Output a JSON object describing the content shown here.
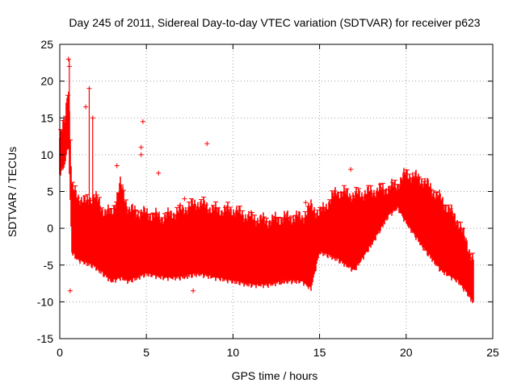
{
  "chart_data": {
    "type": "scatter",
    "title": "Day 245 of 2011, Sidereal Day-to-day VTEC variation (SDTVAR) for receiver p623",
    "xlabel": "GPS time / hours",
    "ylabel": "SDTVAR / TECUs",
    "xlim": [
      0,
      25
    ],
    "ylim": [
      -15,
      25
    ],
    "x_ticks": [
      0,
      5,
      10,
      15,
      20,
      25
    ],
    "y_ticks": [
      -15,
      -10,
      -5,
      0,
      5,
      10,
      15,
      20,
      25
    ],
    "grid": true,
    "marker": "+",
    "color": "#ff0000",
    "series": [
      {
        "name": "SDTVAR",
        "band_hours": [
          0.0,
          0.3,
          0.5,
          0.7,
          1.0,
          1.5,
          2.0,
          2.5,
          3.0,
          3.5,
          4.0,
          5.0,
          6.0,
          7.0,
          8.0,
          9.0,
          10.0,
          11.0,
          12.0,
          13.0,
          14.0,
          14.5,
          15.0,
          16.0,
          17.0,
          18.0,
          19.0,
          19.5,
          20.0,
          21.0,
          22.0,
          23.0,
          23.5,
          23.9
        ],
        "upper": [
          12.0,
          15.0,
          20.0,
          5.5,
          4.5,
          3.5,
          4.5,
          2.5,
          2.0,
          6.0,
          2.5,
          2.0,
          1.5,
          2.5,
          3.5,
          2.5,
          2.5,
          1.5,
          1.0,
          1.5,
          1.5,
          3.0,
          2.0,
          5.0,
          4.5,
          5.0,
          5.5,
          6.0,
          7.5,
          6.5,
          4.0,
          1.0,
          -2.0,
          -4.5
        ],
        "lower": [
          7.5,
          9.0,
          12.0,
          -3.0,
          -4.0,
          -4.5,
          -5.0,
          -6.0,
          -7.0,
          -6.5,
          -7.0,
          -6.0,
          -6.5,
          -6.5,
          -6.0,
          -6.5,
          -7.0,
          -7.5,
          -7.5,
          -7.0,
          -7.0,
          -8.0,
          -3.0,
          -4.0,
          -5.5,
          -2.0,
          2.0,
          3.0,
          1.0,
          -2.5,
          -5.5,
          -7.0,
          -8.5,
          -10.0
        ],
        "outliers": [
          {
            "x": 0.5,
            "y": 23.0
          },
          {
            "x": 0.55,
            "y": 22.0
          },
          {
            "x": 1.5,
            "y": 16.5
          },
          {
            "x": 1.7,
            "y": 19.0
          },
          {
            "x": 1.9,
            "y": 15.0
          },
          {
            "x": 3.3,
            "y": 8.5
          },
          {
            "x": 4.7,
            "y": 11.0
          },
          {
            "x": 4.8,
            "y": 14.5
          },
          {
            "x": 4.7,
            "y": 10.0
          },
          {
            "x": 5.7,
            "y": 7.5
          },
          {
            "x": 8.5,
            "y": 11.5
          },
          {
            "x": 16.8,
            "y": 8.0
          },
          {
            "x": 0.6,
            "y": -8.5
          },
          {
            "x": 7.7,
            "y": -8.5
          },
          {
            "x": 12.8,
            "y": -7.3
          },
          {
            "x": 14.2,
            "y": 3.5
          },
          {
            "x": 7.2,
            "y": 4.0
          }
        ]
      }
    ]
  }
}
